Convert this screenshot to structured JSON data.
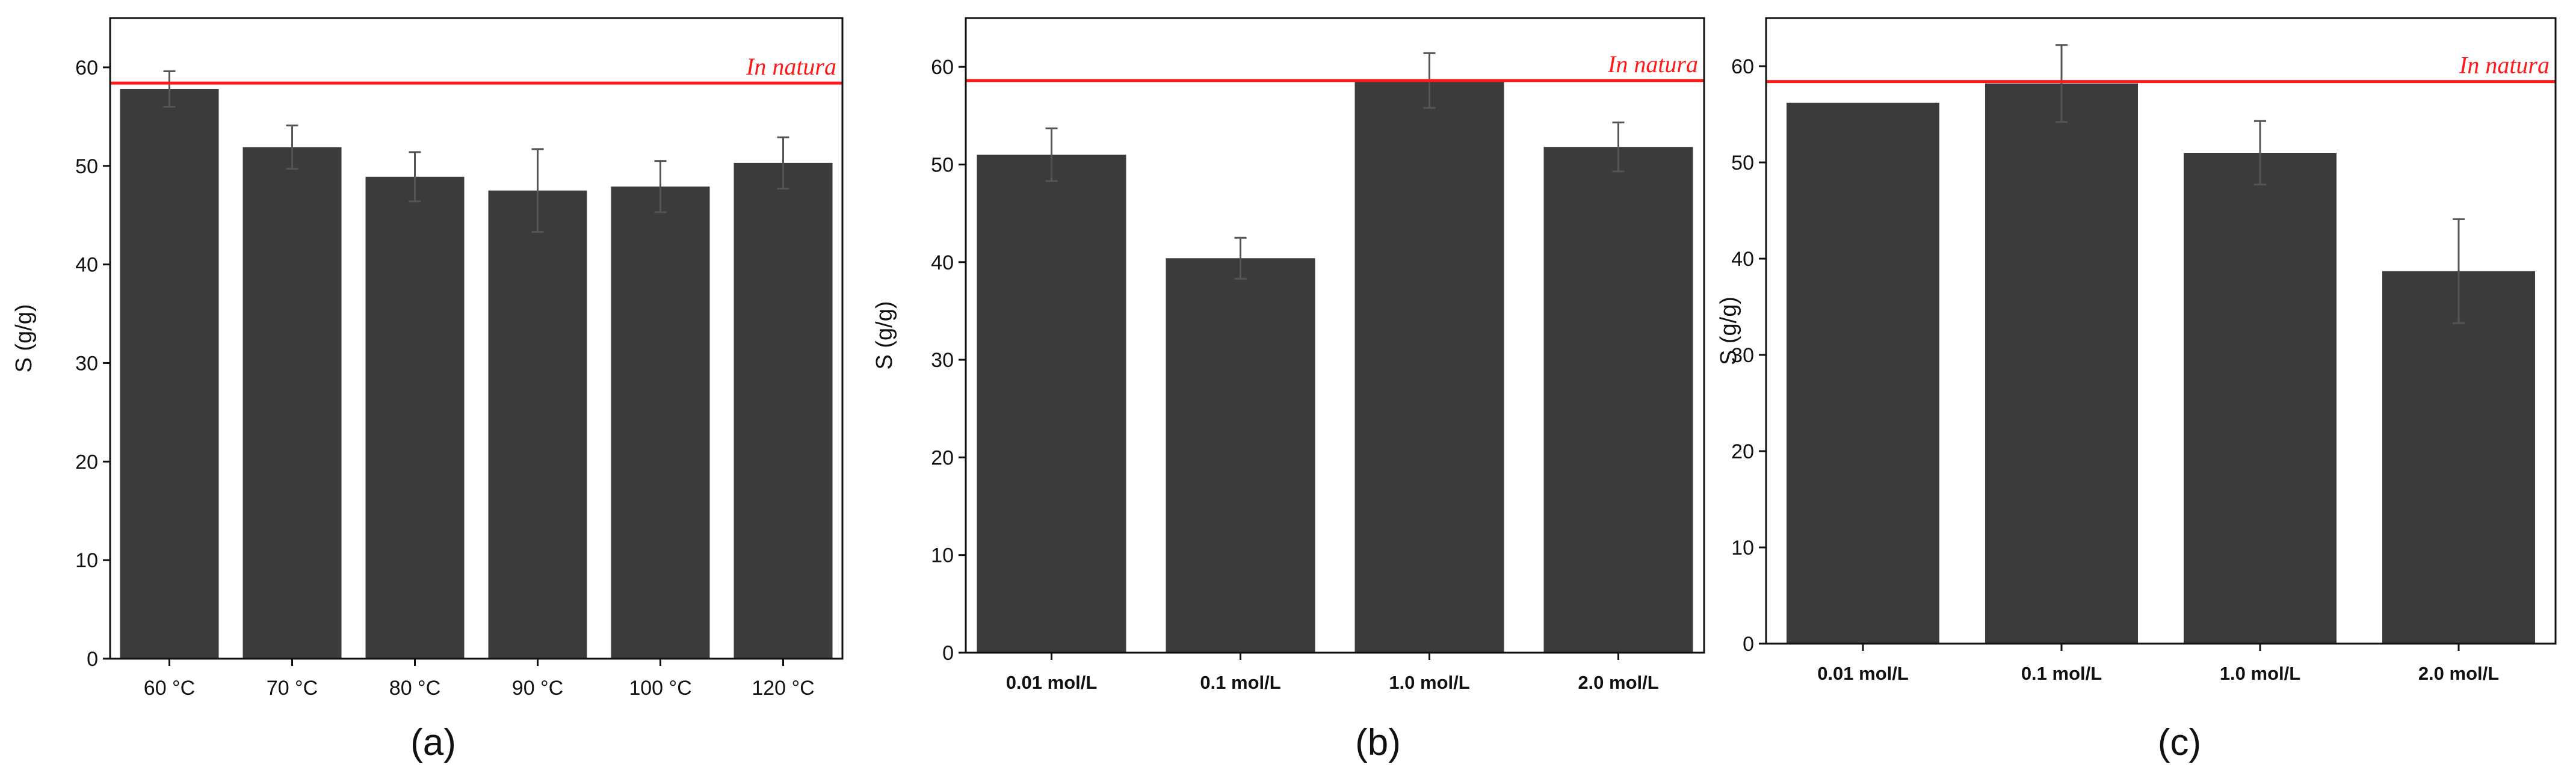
{
  "colors": {
    "bar": "#3b3b3b",
    "reference": "#ff1a1a",
    "error": "#555555",
    "axis": "#111111"
  },
  "chart_data": [
    {
      "type": "bar",
      "panel_label": "(a)",
      "ylabel": "S (g/g)",
      "ylim": [
        0,
        65
      ],
      "yticks": [
        0,
        10,
        20,
        30,
        40,
        50,
        60
      ],
      "categories": [
        "60 °C",
        "70 °C",
        "80 °C",
        "90 °C",
        "100 °C",
        "120 °C"
      ],
      "values": [
        57.8,
        51.9,
        48.9,
        47.5,
        47.9,
        50.3
      ],
      "errors": [
        1.8,
        2.2,
        2.5,
        4.2,
        2.6,
        2.6
      ],
      "reference": {
        "label": "In natura",
        "value": 58.4
      },
      "category_bold": false
    },
    {
      "type": "bar",
      "panel_label": "(b)",
      "ylabel": "S (g/g)",
      "ylim": [
        0,
        65
      ],
      "yticks": [
        0,
        10,
        20,
        30,
        40,
        50,
        60
      ],
      "categories": [
        "0.01 mol/L",
        "0.1 mol/L",
        "1.0 mol/L",
        "2.0 mol/L"
      ],
      "values": [
        51.0,
        40.4,
        58.6,
        51.8
      ],
      "errors": [
        2.7,
        2.1,
        2.8,
        2.5
      ],
      "reference": {
        "label": "In natura",
        "value": 58.6
      },
      "category_bold": true
    },
    {
      "type": "bar",
      "panel_label": "(c)",
      "ylabel": "S (g/g)",
      "ylim": [
        0,
        65
      ],
      "yticks": [
        0,
        10,
        20,
        30,
        40,
        50,
        60
      ],
      "categories": [
        "0.01 mol/L",
        "0.1 mol/L",
        "1.0 mol/L",
        "2.0 mol/L"
      ],
      "values": [
        56.2,
        58.2,
        51.0,
        38.7
      ],
      "errors": [
        0,
        4.0,
        3.3,
        5.4
      ],
      "reference": {
        "label": "In natura",
        "value": 58.4
      },
      "category_bold": true
    }
  ]
}
